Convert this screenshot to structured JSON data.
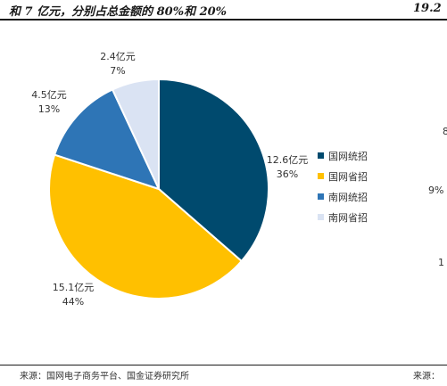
{
  "header": {
    "left_title": "和 7 亿元，分别占总金额的 80%和 20%",
    "right_title": "19.2"
  },
  "footer": {
    "left_source": "来源：国网电子商务平台、国金证券研究所",
    "right_source": "来源："
  },
  "edge_fragments": [
    "8",
    "9%",
    "1"
  ],
  "chart_data": {
    "type": "pie",
    "title": "",
    "slices": [
      {
        "name": "国网统招",
        "value": 12.6,
        "label_value": "12.6亿元",
        "label_pct": "36%",
        "color": "#004a6e"
      },
      {
        "name": "国网省招",
        "value": 15.1,
        "label_value": "15.1亿元",
        "label_pct": "44%",
        "color": "#ffc000"
      },
      {
        "name": "南网统招",
        "value": 4.5,
        "label_value": "4.5亿元",
        "label_pct": "13%",
        "color": "#2e75b6"
      },
      {
        "name": "南网省招",
        "value": 2.4,
        "label_value": "2.4亿元",
        "label_pct": "7%",
        "color": "#dae3f3"
      }
    ],
    "legend_position": "right"
  }
}
